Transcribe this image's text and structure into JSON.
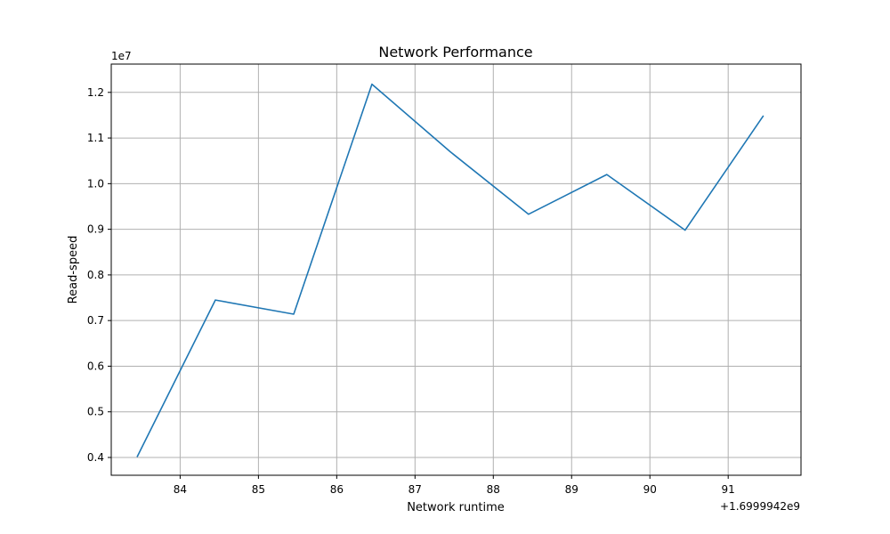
{
  "chart_data": {
    "type": "line",
    "title": "Network Performance",
    "xlabel": "Network runtime",
    "ylabel": "Read-speed",
    "x_offset_label": "+1.6999942e9",
    "y_scale_label": "1e7",
    "x_ticks": [
      84,
      85,
      86,
      87,
      88,
      89,
      90,
      91
    ],
    "x_tick_labels": [
      "84",
      "85",
      "86",
      "87",
      "88",
      "89",
      "90",
      "91"
    ],
    "y_ticks": [
      0.4,
      0.5,
      0.6,
      0.7,
      0.8,
      0.9,
      1.0,
      1.1,
      1.2
    ],
    "y_tick_labels": [
      "0.4",
      "0.5",
      "0.6",
      "0.7",
      "0.8",
      "0.9",
      "1.0",
      "1.1",
      "1.2"
    ],
    "xlim": [
      83.12,
      91.93
    ],
    "ylim": [
      0.361,
      1.262
    ],
    "grid": true,
    "series": [
      {
        "color": "#1f77b4",
        "x": [
          83.45,
          84.45,
          85.45,
          86.45,
          87.45,
          88.45,
          89.45,
          90.45,
          91.45
        ],
        "y": [
          0.401,
          0.745,
          0.714,
          1.218,
          1.07,
          0.933,
          1.02,
          0.898,
          1.149
        ]
      }
    ]
  }
}
